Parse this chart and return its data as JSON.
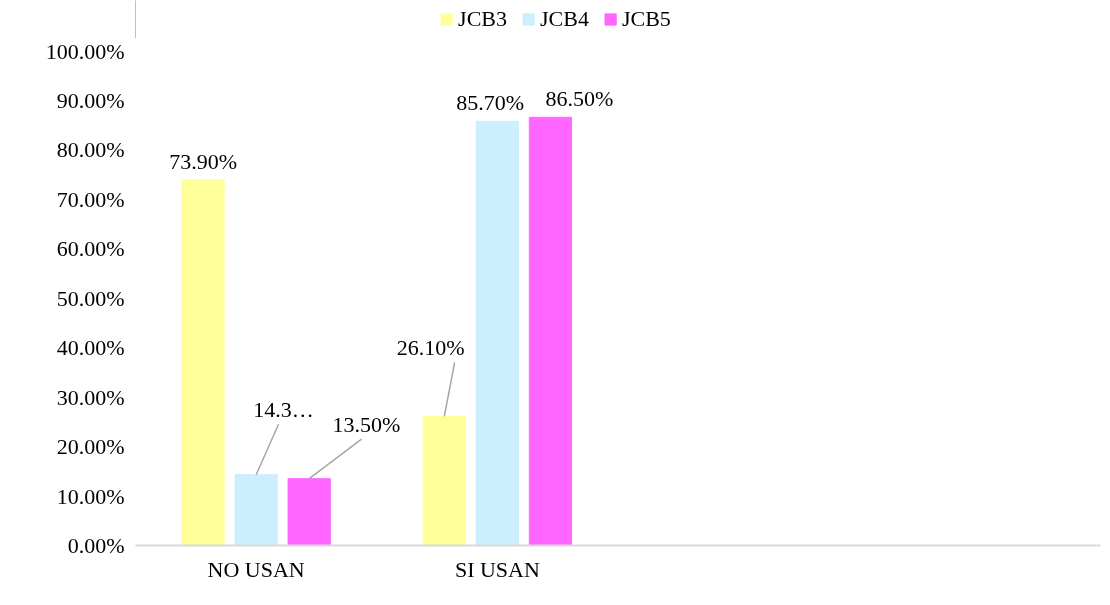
{
  "chart_data": {
    "type": "bar",
    "categories": [
      "NO USAN",
      "SI USAN",
      null,
      null
    ],
    "series": [
      {
        "name": "JCB3",
        "color": "#ffff99",
        "values": [
          73.9,
          26.1,
          null,
          null
        ],
        "value_labels": [
          "73.90%",
          "26.10%",
          null,
          null
        ]
      },
      {
        "name": "JCB4",
        "color": "#cceeff",
        "values": [
          14.3,
          85.7,
          null,
          null
        ],
        "value_labels": [
          "14.3…",
          "85.70%",
          null,
          null
        ]
      },
      {
        "name": "JCB5",
        "color": "#ff66ff",
        "values": [
          13.5,
          86.5,
          null,
          null
        ],
        "value_labels": [
          "13.50%",
          "86.50%",
          null,
          null
        ]
      }
    ],
    "ylim": [
      0,
      100
    ],
    "yticks": [
      {
        "value": 0,
        "label": "0.00%"
      },
      {
        "value": 10,
        "label": "10.00%"
      },
      {
        "value": 20,
        "label": "20.00%"
      },
      {
        "value": 30,
        "label": "30.00%"
      },
      {
        "value": 40,
        "label": "40.00%"
      },
      {
        "value": 50,
        "label": "50.00%"
      },
      {
        "value": 60,
        "label": "60.00%"
      },
      {
        "value": 70,
        "label": "70.00%"
      },
      {
        "value": 80,
        "label": "80.00%"
      },
      {
        "value": 90,
        "label": "90.00%"
      },
      {
        "value": 100,
        "label": "100.00%"
      }
    ],
    "grid": false,
    "legend": "top"
  }
}
